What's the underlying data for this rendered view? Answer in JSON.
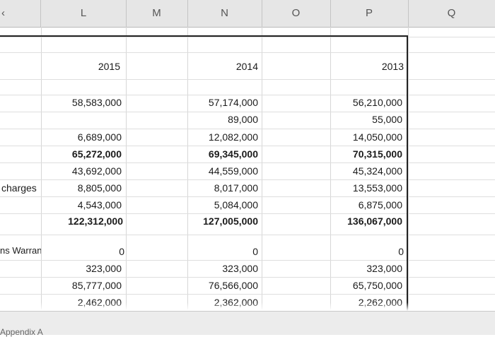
{
  "columns": [
    "",
    "L",
    "M",
    "N",
    "O",
    "P",
    "Q"
  ],
  "years": [
    "2015",
    "2014",
    "2013"
  ],
  "labels": {
    "charges": "charges",
    "warrants": "ns Warrants"
  },
  "rows": [
    {
      "key": "r1",
      "c2015": "58,583,000",
      "c2014": "57,174,000",
      "c2013": "56,210,000",
      "bold": false
    },
    {
      "key": "r2",
      "c2015": "",
      "c2014": "89,000",
      "c2013": "55,000",
      "bold": false
    },
    {
      "key": "r3",
      "c2015": "6,689,000",
      "c2014": "12,082,000",
      "c2013": "14,050,000",
      "bold": false
    },
    {
      "key": "r4",
      "c2015": "65,272,000",
      "c2014": "69,345,000",
      "c2013": "70,315,000",
      "bold": true
    },
    {
      "key": "r5",
      "c2015": "43,692,000",
      "c2014": "44,559,000",
      "c2013": "45,324,000",
      "bold": false
    },
    {
      "key": "r6",
      "c2015": "8,805,000",
      "c2014": "8,017,000",
      "c2013": "13,553,000",
      "bold": false
    },
    {
      "key": "r7",
      "c2015": "4,543,000",
      "c2014": "5,084,000",
      "c2013": "6,875,000",
      "bold": false
    },
    {
      "key": "r8",
      "c2015": "122,312,000",
      "c2014": "127,005,000",
      "c2013": "136,067,000",
      "bold": true
    },
    {
      "key": "r9",
      "c2015": "0",
      "c2014": "0",
      "c2013": "0",
      "bold": false
    },
    {
      "key": "r10",
      "c2015": "323,000",
      "c2014": "323,000",
      "c2013": "323,000",
      "bold": false
    },
    {
      "key": "r11",
      "c2015": "85,777,000",
      "c2014": "76,566,000",
      "c2013": "65,750,000",
      "bold": false
    },
    {
      "key": "r12",
      "c2015": "2,462,000",
      "c2014": "2,362,000",
      "c2013": "2,262,000",
      "bold": false
    }
  ],
  "sheet_tab": "Appendix A",
  "accent": {
    "border": "#222222",
    "grid": "#d6d6d6",
    "header_bg": "#e6e6e6"
  }
}
